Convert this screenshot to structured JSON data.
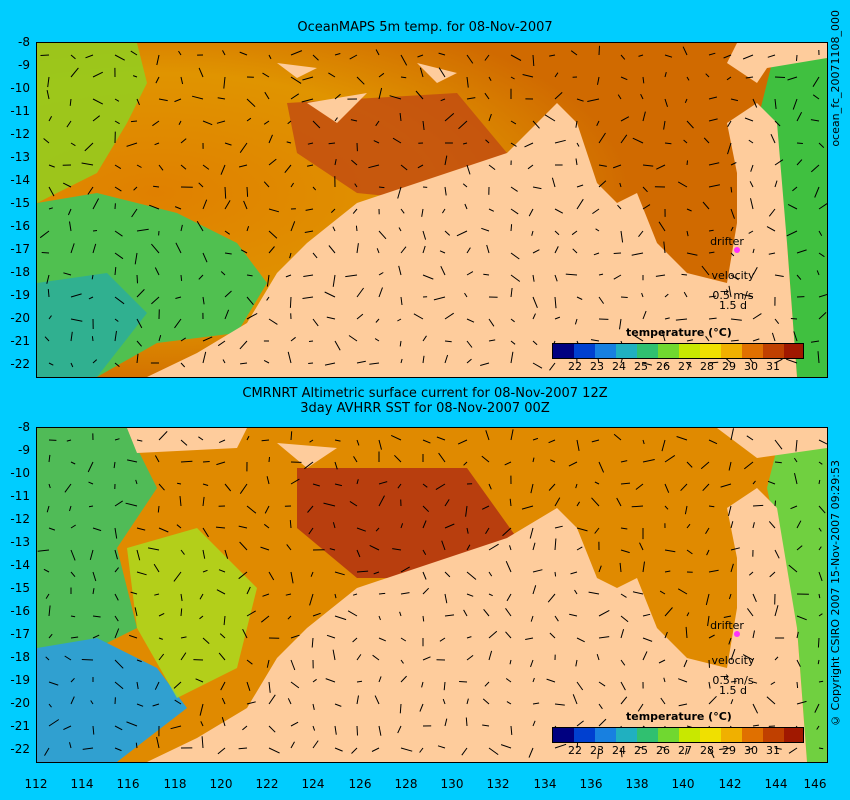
{
  "panel1_title": "OceanMAPS 5m temp. for 08-Nov-2007",
  "panel2_title_line1": "CMRNRT Altimetric surface current for 08-Nov-2007 12Z",
  "panel2_title_line2": "3day AVHRR SST for 08-Nov-2007 00Z",
  "side_label_top": "ocean_fc_20071108_000",
  "side_label_bottom": "© Copyright CSIRO 2007   15-Nov-2007 09:29:53",
  "y_ticks": [
    "-8",
    "-9",
    "-10",
    "-11",
    "-12",
    "-13",
    "-14",
    "-15",
    "-16",
    "-17",
    "-18",
    "-19",
    "-20",
    "-21",
    "-22"
  ],
  "x_ticks": [
    "112",
    "114",
    "116",
    "118",
    "120",
    "122",
    "124",
    "126",
    "128",
    "130",
    "132",
    "134",
    "136",
    "138",
    "140",
    "142",
    "144",
    "146"
  ],
  "legend": {
    "drifter": "drifter",
    "velocity": "velocity",
    "velocity_scale": "0.5 m/s",
    "time_scale": "1.5 d",
    "cb_title": "temperature (°C)",
    "cb_ticks": [
      "22",
      "23",
      "24",
      "25",
      "26",
      "27",
      "28",
      "29",
      "30",
      "31"
    ]
  },
  "colors": {
    "land": "#fecc9c",
    "background": "#00cdff",
    "colorbar": [
      "#000080",
      "#0040d0",
      "#1880e0",
      "#20b0c0",
      "#30c070",
      "#70d830",
      "#c8e800",
      "#f0e000",
      "#f0b000",
      "#e07000",
      "#c04000",
      "#a01800"
    ]
  }
}
